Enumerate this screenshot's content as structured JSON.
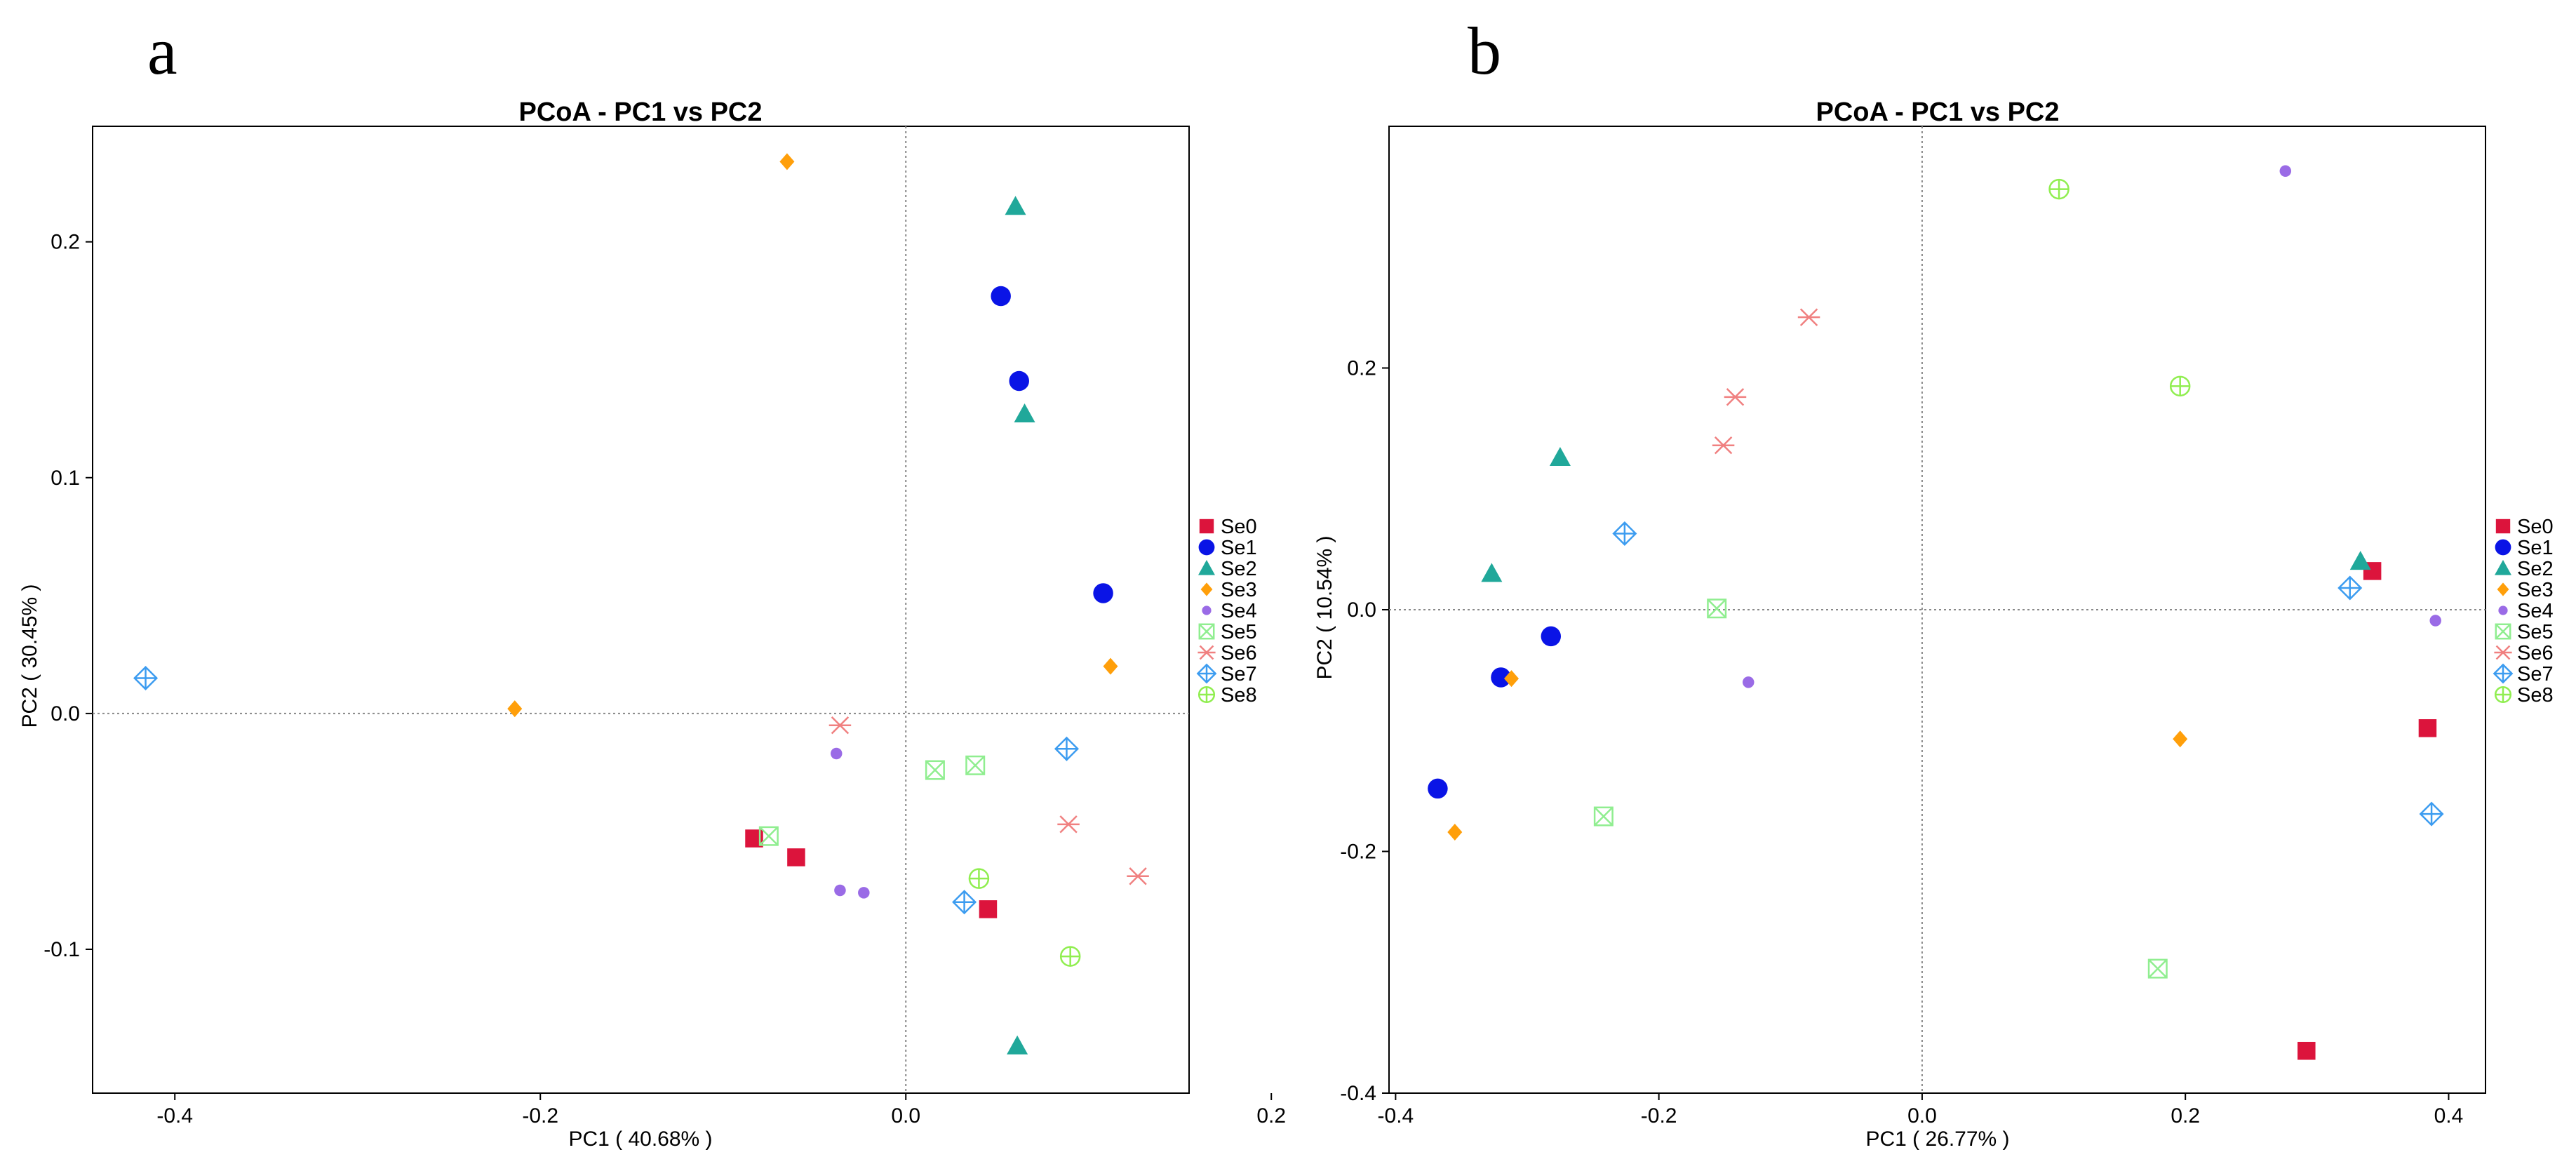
{
  "chart_data": [
    {
      "panel": "a",
      "type": "scatter",
      "title": "PCoA - PC1 vs PC2",
      "xlabel": "PC1 ( 40.68% )",
      "ylabel": "PC2 ( 30.45% )",
      "xlim": [
        -0.445,
        0.155
      ],
      "ylim": [
        -0.161,
        0.249
      ],
      "xticks": [
        -0.4,
        -0.2,
        0.0,
        0.2
      ],
      "xticklabels": [
        "-0.4",
        "-0.2",
        "0.0",
        "0.2"
      ],
      "yticks": [
        -0.1,
        0.0,
        0.1,
        0.2
      ],
      "yticklabels": [
        "-0.1",
        "0.0",
        "0.1",
        "0.2"
      ],
      "reference_lines": {
        "x": 0,
        "y": 0
      },
      "series": [
        {
          "name": "Se0",
          "points": [
            [
              -0.083,
              -0.053
            ],
            [
              -0.06,
              -0.061
            ],
            [
              0.045,
              -0.083
            ]
          ]
        },
        {
          "name": "Se1",
          "points": [
            [
              0.052,
              0.177
            ],
            [
              0.062,
              0.141
            ],
            [
              0.108,
              0.051
            ]
          ]
        },
        {
          "name": "Se2",
          "points": [
            [
              0.06,
              0.215
            ],
            [
              0.065,
              0.127
            ],
            [
              0.061,
              -0.141
            ]
          ]
        },
        {
          "name": "Se3",
          "points": [
            [
              -0.065,
              0.234
            ],
            [
              -0.214,
              0.002
            ],
            [
              0.112,
              0.02
            ]
          ]
        },
        {
          "name": "Se4",
          "points": [
            [
              -0.038,
              -0.017
            ],
            [
              -0.036,
              -0.075
            ],
            [
              -0.023,
              -0.076
            ]
          ]
        },
        {
          "name": "Se5",
          "points": [
            [
              -0.075,
              -0.052
            ],
            [
              0.016,
              -0.024
            ],
            [
              0.038,
              -0.022
            ]
          ]
        },
        {
          "name": "Se6",
          "points": [
            [
              -0.036,
              -0.005
            ],
            [
              0.089,
              -0.047
            ],
            [
              0.127,
              -0.069
            ]
          ]
        },
        {
          "name": "Se7",
          "points": [
            [
              -0.416,
              0.015
            ],
            [
              0.088,
              -0.015
            ],
            [
              0.032,
              -0.08
            ]
          ]
        },
        {
          "name": "Se8",
          "points": [
            [
              0.04,
              -0.07
            ],
            [
              0.09,
              -0.103
            ]
          ]
        }
      ]
    },
    {
      "panel": "b",
      "type": "scatter",
      "title": "PCoA - PC1 vs PC2",
      "xlabel": "PC1 ( 26.77% )",
      "ylabel": "PC2 ( 10.54% )",
      "xlim": [
        -0.405,
        0.428
      ],
      "ylim": [
        -0.4,
        0.4
      ],
      "xticks": [
        -0.4,
        -0.2,
        0.0,
        0.2,
        0.4
      ],
      "xticklabels": [
        "-0.4",
        "-0.2",
        "0.0",
        "0.2",
        "0.4"
      ],
      "yticks": [
        -0.4,
        -0.2,
        0.0,
        0.2
      ],
      "yticklabels": [
        "-0.4",
        "-0.2",
        "0.0",
        "0.2"
      ],
      "reference_lines": {
        "x": 0,
        "y": 0
      },
      "series": [
        {
          "name": "Se0",
          "points": [
            [
              0.342,
              0.032
            ],
            [
              0.384,
              -0.098
            ],
            [
              0.292,
              -0.365
            ]
          ]
        },
        {
          "name": "Se1",
          "points": [
            [
              -0.282,
              -0.022
            ],
            [
              -0.32,
              -0.056
            ],
            [
              -0.368,
              -0.148
            ]
          ]
        },
        {
          "name": "Se2",
          "points": [
            [
              -0.275,
              0.126
            ],
            [
              -0.327,
              0.03
            ],
            [
              0.333,
              0.04
            ]
          ]
        },
        {
          "name": "Se3",
          "points": [
            [
              -0.312,
              -0.057
            ],
            [
              -0.355,
              -0.184
            ],
            [
              0.196,
              -0.107
            ]
          ]
        },
        {
          "name": "Se4",
          "points": [
            [
              0.276,
              0.363
            ],
            [
              -0.132,
              -0.06
            ],
            [
              0.39,
              -0.009
            ]
          ]
        },
        {
          "name": "Se5",
          "points": [
            [
              -0.156,
              0.001
            ],
            [
              -0.242,
              -0.171
            ],
            [
              0.179,
              -0.297
            ]
          ]
        },
        {
          "name": "Se6",
          "points": [
            [
              -0.086,
              0.242
            ],
            [
              -0.142,
              0.176
            ],
            [
              -0.151,
              0.136
            ]
          ]
        },
        {
          "name": "Se7",
          "points": [
            [
              -0.226,
              0.063
            ],
            [
              0.325,
              0.018
            ],
            [
              0.387,
              -0.169
            ]
          ]
        },
        {
          "name": "Se8",
          "points": [
            [
              0.104,
              0.348
            ],
            [
              0.196,
              0.185
            ]
          ]
        }
      ]
    }
  ],
  "legend": {
    "entries": [
      "Se0",
      "Se1",
      "Se2",
      "Se3",
      "Se4",
      "Se5",
      "Se6",
      "Se7",
      "Se8"
    ],
    "colors": [
      "#dc143c",
      "#0a14e6",
      "#20a89a",
      "#ff9f0a",
      "#9a6be6",
      "#90ee90",
      "#f08080",
      "#3c9cf0",
      "#90ee50"
    ],
    "markers": [
      "square",
      "circle",
      "triangle",
      "diamond",
      "dot",
      "boxed-x",
      "asterisk",
      "diamond-plus",
      "circle-plus"
    ]
  }
}
